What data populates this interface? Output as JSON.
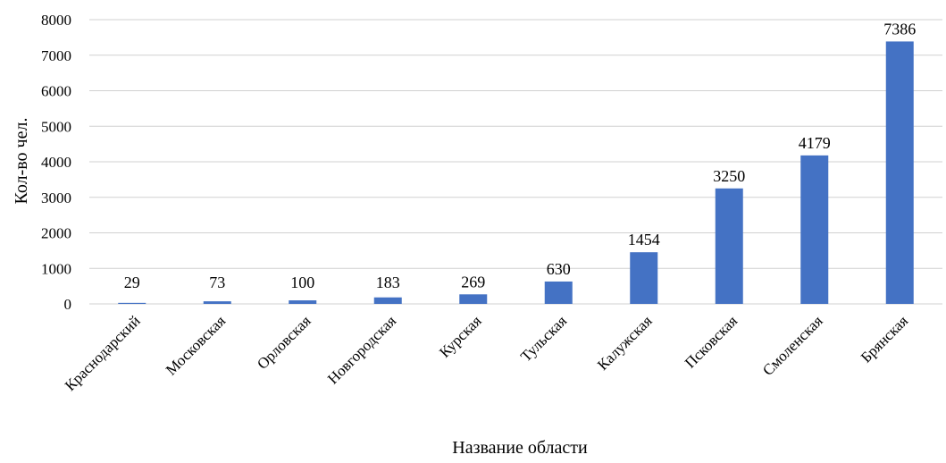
{
  "chart_data": {
    "type": "bar",
    "categories": [
      "Краснодарский",
      "Московская",
      "Орловская",
      "Новгородская",
      "Курская",
      "Тульская",
      "Калужская",
      "Псковская",
      "Смоленская",
      "Брянская"
    ],
    "values": [
      29,
      73,
      100,
      183,
      269,
      630,
      1454,
      3250,
      4179,
      7386
    ],
    "data_labels": [
      "29",
      "73",
      "100",
      "183",
      "269",
      "630",
      "1454",
      "3250",
      "4179",
      "7386"
    ],
    "title": "",
    "xlabel": "Название области",
    "ylabel": "Кол-во чел.",
    "ylim": [
      0,
      8000
    ],
    "yticks": [
      0,
      1000,
      2000,
      3000,
      4000,
      5000,
      6000,
      7000,
      8000
    ],
    "ytick_labels": [
      "0",
      "1000",
      "2000",
      "3000",
      "4000",
      "5000",
      "6000",
      "7000",
      "8000"
    ],
    "grid": true,
    "legend": "none",
    "bar_color": "#4472c4"
  }
}
